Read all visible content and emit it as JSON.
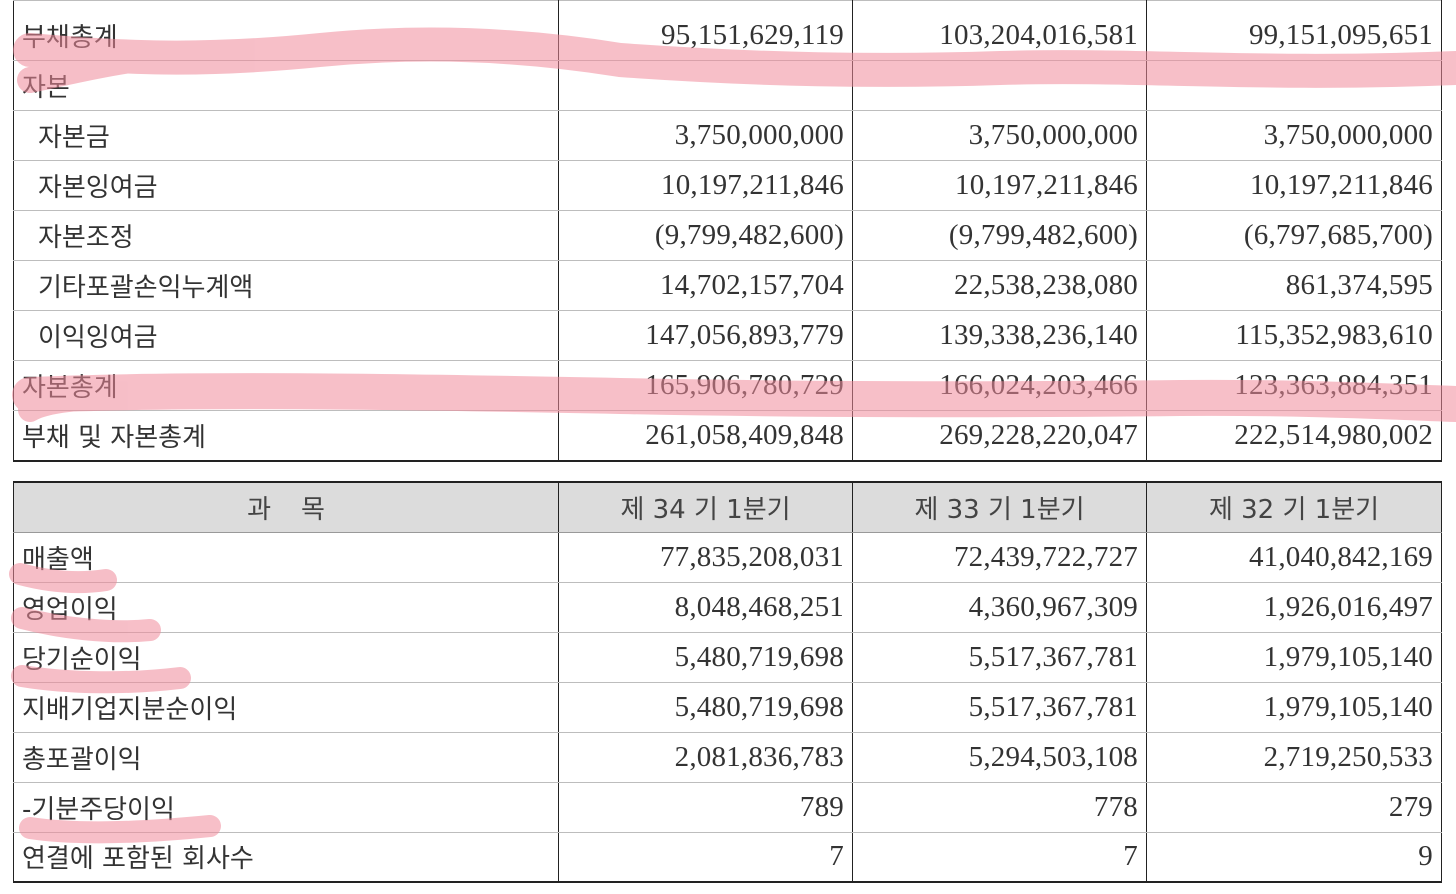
{
  "balance": {
    "rows": [
      {
        "label": "부채총계",
        "indent": false,
        "v1": "95,151,629,119",
        "v2": "103,204,016,581",
        "v3": "99,151,095,651"
      },
      {
        "label": "자본",
        "indent": false,
        "v1": "",
        "v2": "",
        "v3": ""
      },
      {
        "label": "자본금",
        "indent": true,
        "v1": "3,750,000,000",
        "v2": "3,750,000,000",
        "v3": "3,750,000,000"
      },
      {
        "label": "자본잉여금",
        "indent": true,
        "v1": "10,197,211,846",
        "v2": "10,197,211,846",
        "v3": "10,197,211,846"
      },
      {
        "label": "자본조정",
        "indent": true,
        "v1": "(9,799,482,600)",
        "v2": "(9,799,482,600)",
        "v3": "(6,797,685,700)"
      },
      {
        "label": "기타포괄손익누계액",
        "indent": true,
        "v1": "14,702,157,704",
        "v2": "22,538,238,080",
        "v3": "861,374,595"
      },
      {
        "label": "이익잉여금",
        "indent": true,
        "v1": "147,056,893,779",
        "v2": "139,338,236,140",
        "v3": "115,352,983,610"
      },
      {
        "label": "자본총계",
        "indent": false,
        "v1": "165,906,780,729",
        "v2": "166,024,203,466",
        "v3": "123,363,884,351"
      },
      {
        "label": "부채 및 자본총계",
        "indent": false,
        "v1": "261,058,409,848",
        "v2": "269,228,220,047",
        "v3": "222,514,980,002"
      }
    ]
  },
  "income": {
    "header": {
      "subject_1": "과",
      "subject_2": "목",
      "period1": "제 34 기 1분기",
      "period2": "제 33 기 1분기",
      "period3": "제 32 기 1분기"
    },
    "rows": [
      {
        "label": "매출액",
        "v1": "77,835,208,031",
        "v2": "72,439,722,727",
        "v3": "41,040,842,169"
      },
      {
        "label": "영업이익",
        "v1": "8,048,468,251",
        "v2": "4,360,967,309",
        "v3": "1,926,016,497"
      },
      {
        "label": "당기순이익",
        "v1": "5,480,719,698",
        "v2": "5,517,367,781",
        "v3": "1,979,105,140"
      },
      {
        "label": "지배기업지분순이익",
        "v1": "5,480,719,698",
        "v2": "5,517,367,781",
        "v3": "1,979,105,140"
      },
      {
        "label": "총포괄이익",
        "v1": "2,081,836,783",
        "v2": "5,294,503,108",
        "v3": "2,719,250,533"
      },
      {
        "label": "-기분주당이익",
        "v1": "789",
        "v2": "778",
        "v3": "279"
      },
      {
        "label": "연결에 포함된 회사수",
        "v1": "7",
        "v2": "7",
        "v3": "9"
      }
    ]
  },
  "highlight_color": "#f08a9a"
}
